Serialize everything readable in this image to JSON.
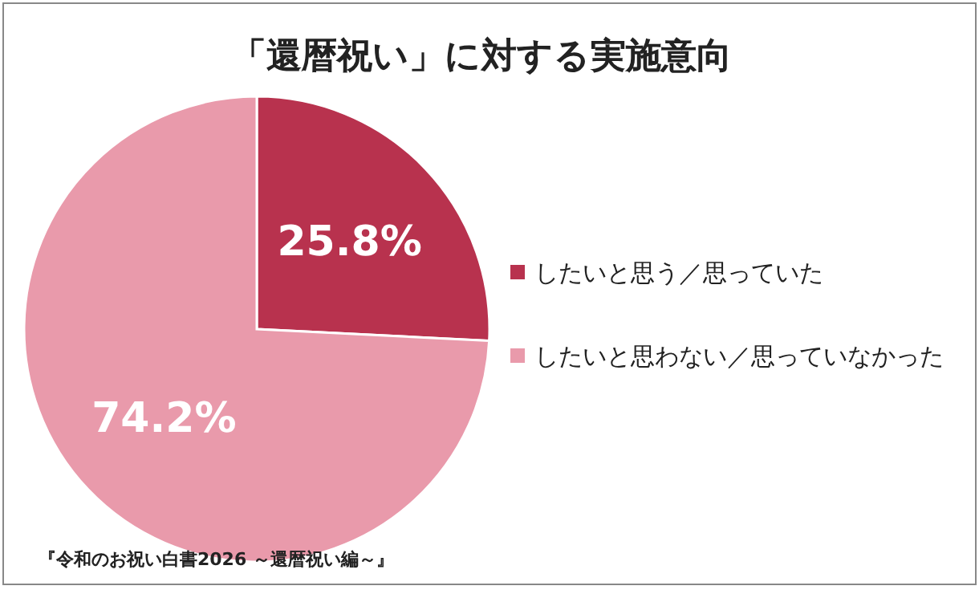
{
  "chart_data": {
    "type": "pie",
    "title": "「還暦祝い」に対する実施意向",
    "categories": [
      "したいと思う／思っていた",
      "したいと思わない／思っていなかった"
    ],
    "values": [
      25.8,
      74.2
    ],
    "colors": [
      "#b8324e",
      "#e99aab"
    ],
    "value_labels": [
      "25.8%",
      "74.2%"
    ],
    "legend": "right",
    "annotations": [
      "『令和のお祝い白書2026 ～還暦祝い編～』"
    ]
  }
}
